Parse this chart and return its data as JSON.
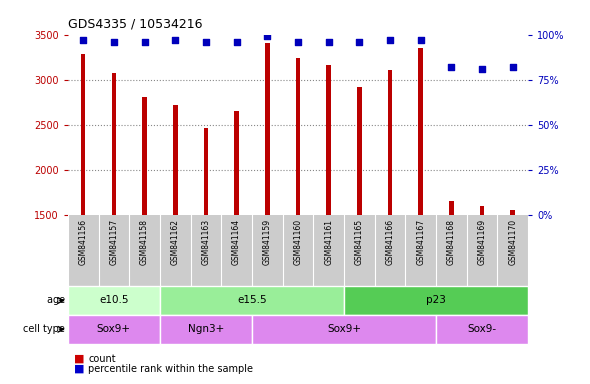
{
  "title": "GDS4335 / 10534216",
  "samples": [
    "GSM841156",
    "GSM841157",
    "GSM841158",
    "GSM841162",
    "GSM841163",
    "GSM841164",
    "GSM841159",
    "GSM841160",
    "GSM841161",
    "GSM841165",
    "GSM841166",
    "GSM841167",
    "GSM841168",
    "GSM841169",
    "GSM841170"
  ],
  "counts": [
    3290,
    3070,
    2810,
    2720,
    2460,
    2650,
    3410,
    3240,
    3160,
    2920,
    3110,
    3350,
    1660,
    1600,
    1555
  ],
  "percentile": [
    97,
    96,
    96,
    97,
    96,
    96,
    99,
    96,
    96,
    96,
    97,
    97,
    82,
    81,
    82
  ],
  "ylim_left": [
    1500,
    3500
  ],
  "ylim_right": [
    0,
    100
  ],
  "yticks_left": [
    1500,
    2000,
    2500,
    3000,
    3500
  ],
  "yticks_right": [
    0,
    25,
    50,
    75,
    100
  ],
  "yticklabels_right": [
    "0%",
    "25%",
    "50%",
    "75%",
    "100%"
  ],
  "bar_color": "#bb0000",
  "dot_color": "#0000bb",
  "bar_width": 0.15,
  "age_groups": [
    {
      "label": "e10.5",
      "start": 0,
      "end": 3,
      "color": "#ccffcc"
    },
    {
      "label": "e15.5",
      "start": 3,
      "end": 9,
      "color": "#99ee99"
    },
    {
      "label": "p23",
      "start": 9,
      "end": 15,
      "color": "#55cc55"
    }
  ],
  "cell_groups": [
    {
      "label": "Sox9+",
      "start": 0,
      "end": 3
    },
    {
      "label": "Ngn3+",
      "start": 3,
      "end": 6
    },
    {
      "label": "Sox9+",
      "start": 6,
      "end": 12
    },
    {
      "label": "Sox9-",
      "start": 12,
      "end": 15
    }
  ],
  "cell_color": "#dd88ee",
  "legend_count_label": "count",
  "legend_pct_label": "percentile rank within the sample",
  "bar_color_legend": "#cc0000",
  "dot_color_legend": "#0000cc",
  "xlabel_color": "#cc0000",
  "grid_color": "#888888",
  "label_area_color": "#cccccc",
  "grid_yticks": [
    2000,
    2500,
    3000
  ]
}
